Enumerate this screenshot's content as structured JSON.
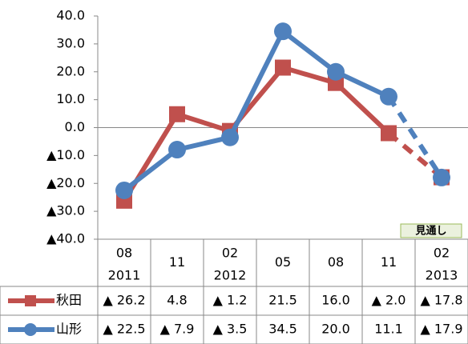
{
  "chart_data": {
    "type": "line",
    "categories": [
      [
        "08",
        "2011"
      ],
      [
        "11"
      ],
      [
        "02",
        "2012"
      ],
      [
        "05"
      ],
      [
        "08"
      ],
      [
        "11"
      ],
      [
        "02",
        "2013"
      ]
    ],
    "series": [
      {
        "name": "秋田",
        "color": "#c0504d",
        "marker": "square",
        "values": [
          -26.2,
          4.8,
          -1.2,
          21.5,
          16.0,
          -2.0,
          -17.8
        ],
        "value_labels": [
          "▲ 26.2",
          "4.8",
          "▲ 1.2",
          "21.5",
          "16.0",
          "▲ 2.0",
          "▲ 17.8"
        ]
      },
      {
        "name": "山形",
        "color": "#4f81bd",
        "marker": "circle",
        "values": [
          -22.5,
          -7.9,
          -3.5,
          34.5,
          20.0,
          11.1,
          -17.9
        ],
        "value_labels": [
          "▲ 22.5",
          "▲ 7.9",
          "▲ 3.5",
          "34.5",
          "20.0",
          "11.1",
          "▲ 17.9"
        ]
      }
    ],
    "ylim": [
      -40,
      40
    ],
    "yticks": [
      {
        "value": 40,
        "label": "40.0"
      },
      {
        "value": 30,
        "label": "30.0"
      },
      {
        "value": 20,
        "label": "20.0"
      },
      {
        "value": 10,
        "label": "10.0"
      },
      {
        "value": 0,
        "label": "0.0"
      },
      {
        "value": -10,
        "label": "▲10.0"
      },
      {
        "value": -20,
        "label": "▲20.0"
      },
      {
        "value": -30,
        "label": "▲30.0"
      },
      {
        "value": -40,
        "label": "▲40.0"
      }
    ],
    "dashed_from_index": 5,
    "annotation": "見通し",
    "data_table": true
  }
}
